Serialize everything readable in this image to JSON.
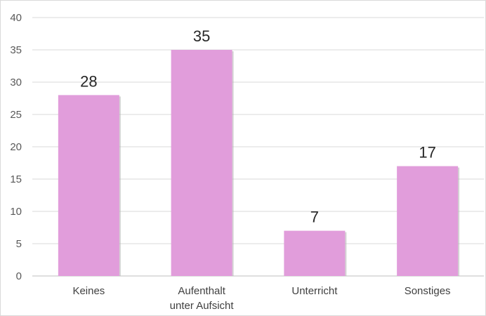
{
  "chart_data": {
    "type": "bar",
    "categories": [
      [
        "Keines"
      ],
      [
        "Aufenthalt",
        "unter Aufsicht"
      ],
      [
        "Unterricht"
      ],
      [
        "Sonstiges"
      ]
    ],
    "values": [
      28,
      35,
      7,
      17
    ],
    "data_labels": [
      "28",
      "35",
      "7",
      "17"
    ],
    "yticks": [
      0,
      5,
      10,
      15,
      20,
      25,
      30,
      35,
      40
    ],
    "ylim": [
      0,
      40
    ],
    "grid": true,
    "legend": "none",
    "bar_color": "#e19ddb",
    "bar_shadow_color": "#b7b7b7"
  }
}
